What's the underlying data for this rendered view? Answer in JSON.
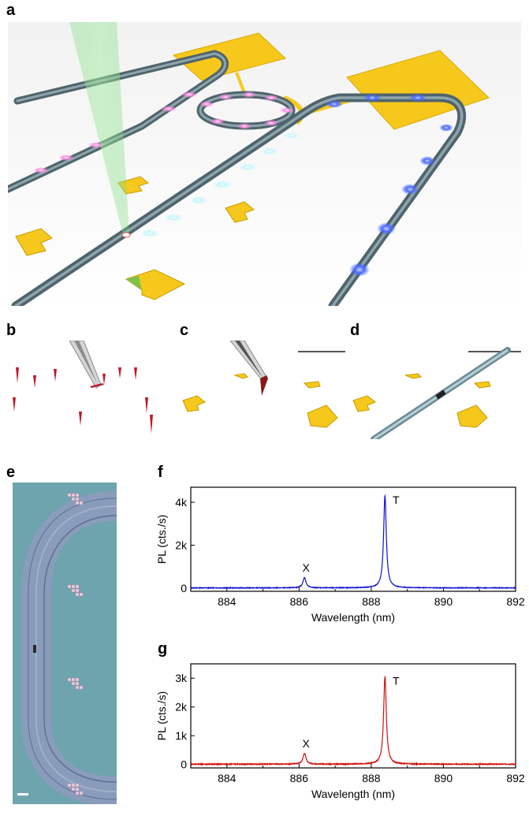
{
  "panels": {
    "a": "a",
    "b": "b",
    "c": "c",
    "d": "d",
    "e": "e",
    "f": "f",
    "g": "g"
  },
  "colors": {
    "waveguide": "#5f747c",
    "gold": "#f7c81c",
    "laser": "#8fe08f",
    "emitter_pink": "#f06ad2",
    "emitter_cyan": "#c8f6ff",
    "emitter_blue": "#5a7dff",
    "nanowire_red": "#c0182a",
    "micro_bg": "#6aa4b0",
    "spectrum_f": "#1010d0",
    "spectrum_g": "#d01010"
  },
  "chart_data": [
    {
      "id": "f",
      "type": "line",
      "xlabel": "Wavelength (nm)",
      "ylabel": "PL (cts./s)",
      "xlim": [
        883,
        892
      ],
      "ylim": [
        -150,
        4700
      ],
      "xticks": [
        884,
        886,
        888,
        890,
        892
      ],
      "yticks": [
        0,
        2000,
        4000
      ],
      "ytick_labels": [
        "0",
        "2k",
        "4k"
      ],
      "color": "#1010d0",
      "baseline": 10,
      "peaks": [
        {
          "label": "X",
          "center": 886.15,
          "height": 480,
          "width": 0.05
        },
        {
          "label": "T",
          "center": 888.38,
          "height": 4300,
          "width": 0.045
        }
      ]
    },
    {
      "id": "g",
      "type": "line",
      "xlabel": "Wavelength (nm)",
      "ylabel": "PL (cts./s)",
      "xlim": [
        883,
        892
      ],
      "ylim": [
        -120,
        3500
      ],
      "xticks": [
        884,
        886,
        888,
        890,
        892
      ],
      "yticks": [
        0,
        1000,
        2000,
        3000
      ],
      "ytick_labels": [
        "0",
        "1k",
        "2k",
        "3k"
      ],
      "color": "#d01010",
      "baseline": 10,
      "peaks": [
        {
          "label": "X",
          "center": 886.15,
          "height": 380,
          "width": 0.05
        },
        {
          "label": "T",
          "center": 888.38,
          "height": 3050,
          "width": 0.045
        }
      ]
    }
  ]
}
